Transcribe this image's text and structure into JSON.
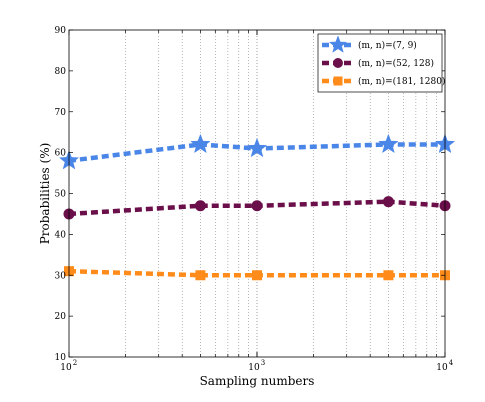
{
  "chart_data": {
    "type": "line",
    "xlabel": "Sampling numbers",
    "ylabel": "Probabilities (%)",
    "x_scale": "log",
    "xlim": [
      100,
      10000
    ],
    "ylim": [
      10,
      90
    ],
    "x_ticks": [
      {
        "value": 100,
        "base": "10",
        "exp": "2"
      },
      {
        "value": 1000,
        "base": "10",
        "exp": "3"
      },
      {
        "value": 10000,
        "base": "10",
        "exp": "4"
      }
    ],
    "y_ticks": [
      10,
      20,
      30,
      40,
      50,
      60,
      70,
      80,
      90
    ],
    "y_tick_labels": [
      "10",
      "20",
      "30",
      "40",
      "50",
      "60",
      "70",
      "80",
      "90"
    ],
    "grid": "dotted vertical (log minor), no horizontal",
    "legend": "top-right",
    "x": [
      100,
      500,
      1000,
      5000,
      10000
    ],
    "series": [
      {
        "name": "(m, n)=(7, 9)",
        "marker": "star",
        "color": "#4a86e8",
        "values": [
          58,
          62,
          61,
          62,
          62
        ]
      },
      {
        "name": "(m, n)=(52, 128)",
        "marker": "circle",
        "color": "#6b0f4a",
        "values": [
          45,
          47,
          47,
          48,
          47
        ]
      },
      {
        "name": "(m, n)=(181, 1280)",
        "marker": "square",
        "color": "#ff8c1a",
        "values": [
          31,
          30,
          30,
          30,
          30
        ]
      }
    ]
  }
}
